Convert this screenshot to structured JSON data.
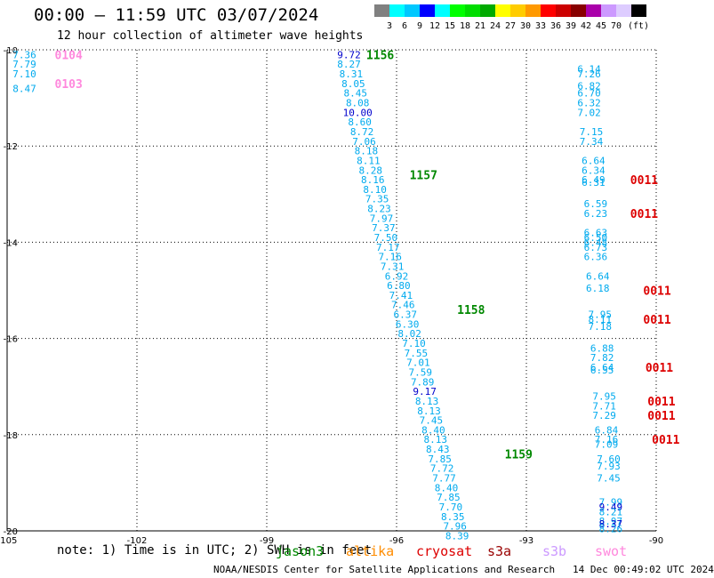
{
  "header": {
    "title": "00:00 — 11:59 UTC 03/07/2024",
    "subtitle": "12 hour collection of altimeter wave heights"
  },
  "scale": {
    "colors": [
      "#808080",
      "#00ffff",
      "#00c8ff",
      "#0000ff",
      "#00ffff",
      "#00ff00",
      "#00dd00",
      "#00aa00",
      "#ffff00",
      "#ffcc00",
      "#ff9900",
      "#ff0000",
      "#cc0000",
      "#880000",
      "#aa00aa",
      "#cc99ff",
      "#ddccff",
      "#000000"
    ],
    "labels": [
      "3",
      "6",
      "9",
      "12",
      "15",
      "18",
      "21",
      "24",
      "27",
      "30",
      "33",
      "36",
      "39",
      "42",
      "45",
      "70",
      "(ft)"
    ]
  },
  "footer": {
    "note": "note: 1) Time is in UTC; 2) SWH is in feet",
    "credit": "NOAA/NESDIS Center for Satellite Applications and Research   14 Dec 00:49:02 UTC 2024",
    "satellites": [
      {
        "name": "jason3",
        "color": "#008800"
      },
      {
        "name": "altika",
        "color": "#ff8c00"
      },
      {
        "name": "cryosat",
        "color": "#dd0000"
      },
      {
        "name": "s3a",
        "color": "#990000"
      },
      {
        "name": "s3b",
        "color": "#cc99ff"
      },
      {
        "name": "swot",
        "color": "#ff88dd"
      }
    ]
  },
  "chart_data": {
    "type": "scatter",
    "xlim": [
      -105,
      -90
    ],
    "ylim": [
      -20,
      -10
    ],
    "x_ticks": [
      -105,
      -102,
      -99,
      -96,
      -93,
      -90
    ],
    "x_tick_labels": [
      "-105",
      "-102",
      "-99",
      "-96",
      "-93",
      "-90"
    ],
    "y_ticks": [
      -10,
      -12,
      -14,
      -16,
      -18,
      -20
    ],
    "y_tick_labels": [
      "-10",
      "-12",
      "-14",
      "-16",
      "-18",
      "-20"
    ],
    "grid": true,
    "time_labels": [
      {
        "text": "1156",
        "x": -96.7,
        "y": -10.1,
        "color": "#008800"
      },
      {
        "text": "1157",
        "x": -95.7,
        "y": -12.6,
        "color": "#008800"
      },
      {
        "text": "1158",
        "x": -94.6,
        "y": -15.4,
        "color": "#008800"
      },
      {
        "text": "1159",
        "x": -93.5,
        "y": -18.4,
        "color": "#008800"
      },
      {
        "text": "0104",
        "x": -103.9,
        "y": -10.1,
        "color": "#ff88dd"
      },
      {
        "text": "0103",
        "x": -103.9,
        "y": -10.7,
        "color": "#ff88dd"
      },
      {
        "text": "0011",
        "x": -90.6,
        "y": -12.7,
        "color": "#dd0000"
      },
      {
        "text": "0011",
        "x": -90.6,
        "y": -13.4,
        "color": "#dd0000"
      },
      {
        "text": "0011",
        "x": -90.3,
        "y": -15.0,
        "color": "#dd0000"
      },
      {
        "text": "0011",
        "x": -90.3,
        "y": -15.6,
        "color": "#dd0000"
      },
      {
        "text": "0011",
        "x": -90.25,
        "y": -16.6,
        "color": "#dd0000"
      },
      {
        "text": "0011",
        "x": -90.2,
        "y": -17.3,
        "color": "#dd0000"
      },
      {
        "text": "0011",
        "x": -90.2,
        "y": -17.6,
        "color": "#dd0000"
      },
      {
        "text": "0011",
        "x": -90.1,
        "y": -18.1,
        "color": "#dd0000"
      }
    ],
    "series": [
      {
        "points": [
          {
            "x": -97.1,
            "y": -10.1,
            "v": "9.72",
            "c": "#0000cc"
          },
          {
            "x": -97.1,
            "y": -10.3,
            "v": "8.27",
            "c": "#00aaee"
          },
          {
            "x": -97.05,
            "y": -10.5,
            "v": "8.31",
            "c": "#00aaee"
          },
          {
            "x": -97.0,
            "y": -10.7,
            "v": "8.05",
            "c": "#00aaee"
          },
          {
            "x": -96.95,
            "y": -10.9,
            "v": "8.45",
            "c": "#00aaee"
          },
          {
            "x": -96.9,
            "y": -11.1,
            "v": "8.08",
            "c": "#00aaee"
          },
          {
            "x": -96.9,
            "y": -11.3,
            "v": "10.00",
            "c": "#0000cc"
          },
          {
            "x": -96.85,
            "y": -11.5,
            "v": "8.60",
            "c": "#00aaee"
          },
          {
            "x": -96.8,
            "y": -11.7,
            "v": "8.72",
            "c": "#00aaee"
          },
          {
            "x": -96.75,
            "y": -11.9,
            "v": "7.06",
            "c": "#00aaee"
          },
          {
            "x": -96.7,
            "y": -12.1,
            "v": "8.18",
            "c": "#00aaee"
          },
          {
            "x": -96.65,
            "y": -12.3,
            "v": "8.11",
            "c": "#00aaee"
          },
          {
            "x": -96.6,
            "y": -12.5,
            "v": "8.28",
            "c": "#00aaee"
          },
          {
            "x": -96.55,
            "y": -12.7,
            "v": "8.16",
            "c": "#00aaee"
          },
          {
            "x": -96.5,
            "y": -12.9,
            "v": "8.10",
            "c": "#00aaee"
          },
          {
            "x": -96.45,
            "y": -13.1,
            "v": "7.35",
            "c": "#00aaee"
          },
          {
            "x": -96.4,
            "y": -13.3,
            "v": "8.23",
            "c": "#00aaee"
          },
          {
            "x": -96.35,
            "y": -13.5,
            "v": "7.97",
            "c": "#00aaee"
          },
          {
            "x": -96.3,
            "y": -13.7,
            "v": "7.37",
            "c": "#00aaee"
          },
          {
            "x": -96.25,
            "y": -13.9,
            "v": "7.50",
            "c": "#00aaee"
          },
          {
            "x": -96.2,
            "y": -14.1,
            "v": "7.17",
            "c": "#00aaee"
          },
          {
            "x": -96.15,
            "y": -14.3,
            "v": "7.16",
            "c": "#00aaee"
          },
          {
            "x": -96.1,
            "y": -14.5,
            "v": "7.31",
            "c": "#00aaee"
          },
          {
            "x": -96.0,
            "y": -14.7,
            "v": "6.92",
            "c": "#00aaee"
          },
          {
            "x": -95.95,
            "y": -14.9,
            "v": "6.80",
            "c": "#00aaee"
          },
          {
            "x": -95.9,
            "y": -15.1,
            "v": "7.41",
            "c": "#00aaee"
          },
          {
            "x": -95.85,
            "y": -15.3,
            "v": "7.46",
            "c": "#00aaee"
          },
          {
            "x": -95.8,
            "y": -15.5,
            "v": "6.37",
            "c": "#00aaee"
          },
          {
            "x": -95.75,
            "y": -15.7,
            "v": "6.30",
            "c": "#00aaee"
          },
          {
            "x": -95.7,
            "y": -15.9,
            "v": "8.02",
            "c": "#00aaee"
          },
          {
            "x": -95.6,
            "y": -16.1,
            "v": "7.10",
            "c": "#00aaee"
          },
          {
            "x": -95.55,
            "y": -16.3,
            "v": "7.55",
            "c": "#00aaee"
          },
          {
            "x": -95.5,
            "y": -16.5,
            "v": "7.01",
            "c": "#00aaee"
          },
          {
            "x": -95.45,
            "y": -16.7,
            "v": "7.59",
            "c": "#00aaee"
          },
          {
            "x": -95.4,
            "y": -16.9,
            "v": "7.89",
            "c": "#00aaee"
          },
          {
            "x": -95.35,
            "y": -17.1,
            "v": "9.17",
            "c": "#0000cc"
          },
          {
            "x": -95.3,
            "y": -17.3,
            "v": "8.13",
            "c": "#00aaee"
          },
          {
            "x": -95.25,
            "y": -17.5,
            "v": "8.13",
            "c": "#00aaee"
          },
          {
            "x": -95.2,
            "y": -17.7,
            "v": "7.45",
            "c": "#00aaee"
          },
          {
            "x": -95.15,
            "y": -17.9,
            "v": "8.40",
            "c": "#00aaee"
          },
          {
            "x": -95.1,
            "y": -18.1,
            "v": "8.13",
            "c": "#00aaee"
          },
          {
            "x": -95.05,
            "y": -18.3,
            "v": "8.43",
            "c": "#00aaee"
          },
          {
            "x": -95.0,
            "y": -18.5,
            "v": "7.85",
            "c": "#00aaee"
          },
          {
            "x": -94.95,
            "y": -18.7,
            "v": "7.72",
            "c": "#00aaee"
          },
          {
            "x": -94.9,
            "y": -18.9,
            "v": "7.77",
            "c": "#00aaee"
          },
          {
            "x": -94.85,
            "y": -19.1,
            "v": "8.40",
            "c": "#00aaee"
          },
          {
            "x": -94.8,
            "y": -19.3,
            "v": "7.85",
            "c": "#00aaee"
          },
          {
            "x": -94.75,
            "y": -19.5,
            "v": "7.70",
            "c": "#00aaee"
          },
          {
            "x": -94.7,
            "y": -19.7,
            "v": "8.35",
            "c": "#00aaee"
          },
          {
            "x": -94.65,
            "y": -19.9,
            "v": "7.96",
            "c": "#00aaee"
          },
          {
            "x": -94.6,
            "y": -20.1,
            "v": "8.39",
            "c": "#00aaee"
          }
        ]
      },
      {
        "points": [
          {
            "x": -91.55,
            "y": -10.4,
            "v": "6.14",
            "c": "#00aaee"
          },
          {
            "x": -91.55,
            "y": -10.5,
            "v": "7.26",
            "c": "#00aaee"
          },
          {
            "x": -91.55,
            "y": -10.75,
            "v": "6.82",
            "c": "#00aaee"
          },
          {
            "x": -91.55,
            "y": -10.9,
            "v": "6.70",
            "c": "#00aaee"
          },
          {
            "x": -91.55,
            "y": -11.1,
            "v": "6.32",
            "c": "#00aaee"
          },
          {
            "x": -91.55,
            "y": -11.3,
            "v": "7.02",
            "c": "#00aaee"
          },
          {
            "x": -91.5,
            "y": -11.7,
            "v": "7.15",
            "c": "#00aaee"
          },
          {
            "x": -91.5,
            "y": -11.9,
            "v": "7.34",
            "c": "#00aaee"
          },
          {
            "x": -91.45,
            "y": -12.3,
            "v": "6.64",
            "c": "#00aaee"
          },
          {
            "x": -91.45,
            "y": -12.5,
            "v": "6.34",
            "c": "#00aaee"
          },
          {
            "x": -91.45,
            "y": -12.7,
            "v": "6.49",
            "c": "#00aaee"
          },
          {
            "x": -91.45,
            "y": -12.75,
            "v": "6.31",
            "c": "#00aaee"
          },
          {
            "x": -91.4,
            "y": -13.2,
            "v": "6.59",
            "c": "#00aaee"
          },
          {
            "x": -91.4,
            "y": -13.4,
            "v": "6.23",
            "c": "#00aaee"
          },
          {
            "x": -91.4,
            "y": -13.8,
            "v": "6.63",
            "c": "#00aaee"
          },
          {
            "x": -91.4,
            "y": -13.9,
            "v": "6.50",
            "c": "#00aaee"
          },
          {
            "x": -91.4,
            "y": -14.0,
            "v": "6.48",
            "c": "#00aaee"
          },
          {
            "x": -91.4,
            "y": -14.1,
            "v": "6.73",
            "c": "#00aaee"
          },
          {
            "x": -91.4,
            "y": -14.3,
            "v": "6.36",
            "c": "#00aaee"
          },
          {
            "x": -91.35,
            "y": -14.7,
            "v": "6.64",
            "c": "#00aaee"
          },
          {
            "x": -91.35,
            "y": -14.95,
            "v": "6.18",
            "c": "#00aaee"
          },
          {
            "x": -91.3,
            "y": -15.5,
            "v": "7.95",
            "c": "#00aaee"
          },
          {
            "x": -91.3,
            "y": -15.6,
            "v": "8.11",
            "c": "#00aaee"
          },
          {
            "x": -91.3,
            "y": -15.75,
            "v": "7.18",
            "c": "#00aaee"
          },
          {
            "x": -91.25,
            "y": -16.2,
            "v": "6.88",
            "c": "#00aaee"
          },
          {
            "x": -91.25,
            "y": -16.4,
            "v": "7.82",
            "c": "#00aaee"
          },
          {
            "x": -91.25,
            "y": -16.6,
            "v": "6.64",
            "c": "#00aaee"
          },
          {
            "x": -91.25,
            "y": -16.65,
            "v": "6.55",
            "c": "#00aaee"
          },
          {
            "x": -91.2,
            "y": -17.2,
            "v": "7.95",
            "c": "#00aaee"
          },
          {
            "x": -91.2,
            "y": -17.4,
            "v": "7.71",
            "c": "#00aaee"
          },
          {
            "x": -91.2,
            "y": -17.6,
            "v": "7.29",
            "c": "#00aaee"
          },
          {
            "x": -91.15,
            "y": -17.9,
            "v": "6.84",
            "c": "#00aaee"
          },
          {
            "x": -91.15,
            "y": -18.1,
            "v": "7.16",
            "c": "#00aaee"
          },
          {
            "x": -91.15,
            "y": -18.2,
            "v": "7.09",
            "c": "#00aaee"
          },
          {
            "x": -91.1,
            "y": -18.5,
            "v": "7.60",
            "c": "#00aaee"
          },
          {
            "x": -91.1,
            "y": -18.65,
            "v": "7.93",
            "c": "#00aaee"
          },
          {
            "x": -91.1,
            "y": -18.9,
            "v": "7.45",
            "c": "#00aaee"
          },
          {
            "x": -91.05,
            "y": -19.4,
            "v": "7.99",
            "c": "#00aaee"
          },
          {
            "x": -91.05,
            "y": -19.5,
            "v": "9.49",
            "c": "#0000cc"
          },
          {
            "x": -91.05,
            "y": -19.6,
            "v": "8.21",
            "c": "#00aaee"
          },
          {
            "x": -91.05,
            "y": -19.8,
            "v": "8.97",
            "c": "#00aaee"
          },
          {
            "x": -91.05,
            "y": -19.85,
            "v": "8.37",
            "c": "#0000cc"
          },
          {
            "x": -91.05,
            "y": -19.95,
            "v": "8.26",
            "c": "#00aaee"
          }
        ]
      },
      {
        "points": [
          {
            "x": -104.6,
            "y": -10.1,
            "v": "7.36",
            "c": "#00aaee"
          },
          {
            "x": -104.6,
            "y": -10.3,
            "v": "7.79",
            "c": "#00aaee"
          },
          {
            "x": -104.6,
            "y": -10.5,
            "v": "7.10",
            "c": "#00aaee"
          },
          {
            "x": -104.6,
            "y": -10.8,
            "v": "8.47",
            "c": "#00aaee"
          }
        ]
      }
    ]
  }
}
